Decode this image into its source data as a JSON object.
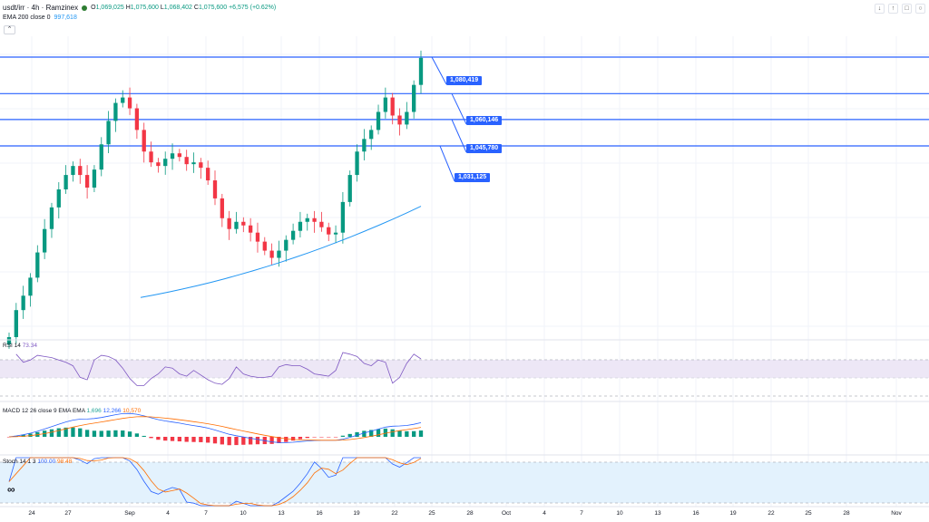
{
  "header": {
    "symbol": "usdt/irr · 4h · Ramzinex",
    "open_label": "O",
    "open": "1,069,025",
    "high_label": "H",
    "high": "1,075,600",
    "low_label": "L",
    "low": "1,068,402",
    "close_label": "C",
    "close": "1,075,600",
    "change": "+6,575 (+0.62%)"
  },
  "ema": {
    "label": "EMA 200 close 0",
    "value": "997,618"
  },
  "collapse_icon": "chevron-up-icon",
  "top_buttons": [
    "arrow-down-icon",
    "arrow-up-icon",
    "maximize-icon",
    "settings-icon"
  ],
  "rsi": {
    "label": "RSI 14",
    "value": "73.34"
  },
  "macd": {
    "label": "MACD 12 26 close 9 EMA EMA",
    "values": [
      "1,696",
      "12,266",
      "10,570"
    ]
  },
  "stoch": {
    "label": "Stoch 14 1 3",
    "values": [
      "100.00",
      "98.48"
    ]
  },
  "levels": [
    "1,080,419",
    "1,060,146",
    "1,045,780",
    "1,031,125"
  ],
  "x_ticks": [
    "24",
    "27",
    "Sep",
    "4",
    "7",
    "10",
    "13",
    "16",
    "19",
    "22",
    "25",
    "28",
    "Oct",
    "4",
    "7",
    "10",
    "13",
    "16",
    "19",
    "22",
    "25",
    "28",
    "Nov"
  ],
  "colors": {
    "up": "#089981",
    "down": "#f23645",
    "ema": "#2196f3",
    "level": "#2962ff",
    "rsi": "#7e57c2",
    "rsi_band": "#ede7f6",
    "macd": "#2962ff",
    "signal": "#ff6d00",
    "stoch_k": "#2962ff",
    "stoch_d": "#ff6d00",
    "stoch_band": "#e3f2fd"
  },
  "chart_data": {
    "type": "candlestick",
    "price_levels": [
      1080419,
      1060146,
      1045780,
      1031125
    ],
    "close_series_approx": [
      925000,
      940000,
      948000,
      958000,
      972000,
      985000,
      997000,
      1007000,
      1015000,
      1020000,
      1015000,
      1008000,
      1018000,
      1032000,
      1045000,
      1055000,
      1058000,
      1052000,
      1040000,
      1028000,
      1022000,
      1020000,
      1024000,
      1027000,
      1025000,
      1021000,
      1022000,
      1019000,
      1012000,
      1002000,
      991000,
      985000,
      989000,
      987000,
      983000,
      978000,
      973000,
      969000,
      973000,
      979000,
      984000,
      989000,
      991000,
      989000,
      986000,
      982000,
      983000,
      1000000,
      1015000,
      1028000,
      1035000,
      1040000,
      1050000,
      1058000,
      1048000,
      1043000,
      1050000,
      1065000,
      1080000
    ],
    "ema200_approx": [
      {
        "x": "Sep 1",
        "y": 947000
      },
      {
        "x": "Sep 24",
        "y": 997618
      }
    ],
    "rsi": {
      "length": 14,
      "last": 73.34,
      "bands": [
        70,
        30
      ]
    },
    "macd": {
      "fast": 12,
      "slow": 26,
      "signal": 9,
      "hist": 1696,
      "macd": 12266,
      "signal_value": 10570
    },
    "stoch": {
      "k_length": 14,
      "k_smooth": 1,
      "d_smooth": 3,
      "k": 100.0,
      "d": 98.48,
      "bands": [
        80,
        20
      ]
    },
    "x_axis_labels": [
      "24",
      "27",
      "Sep",
      "4",
      "7",
      "10",
      "13",
      "16",
      "19",
      "22",
      "25",
      "28",
      "Oct",
      "4",
      "7",
      "10",
      "13",
      "16",
      "19",
      "22",
      "25",
      "28",
      "Nov"
    ]
  }
}
